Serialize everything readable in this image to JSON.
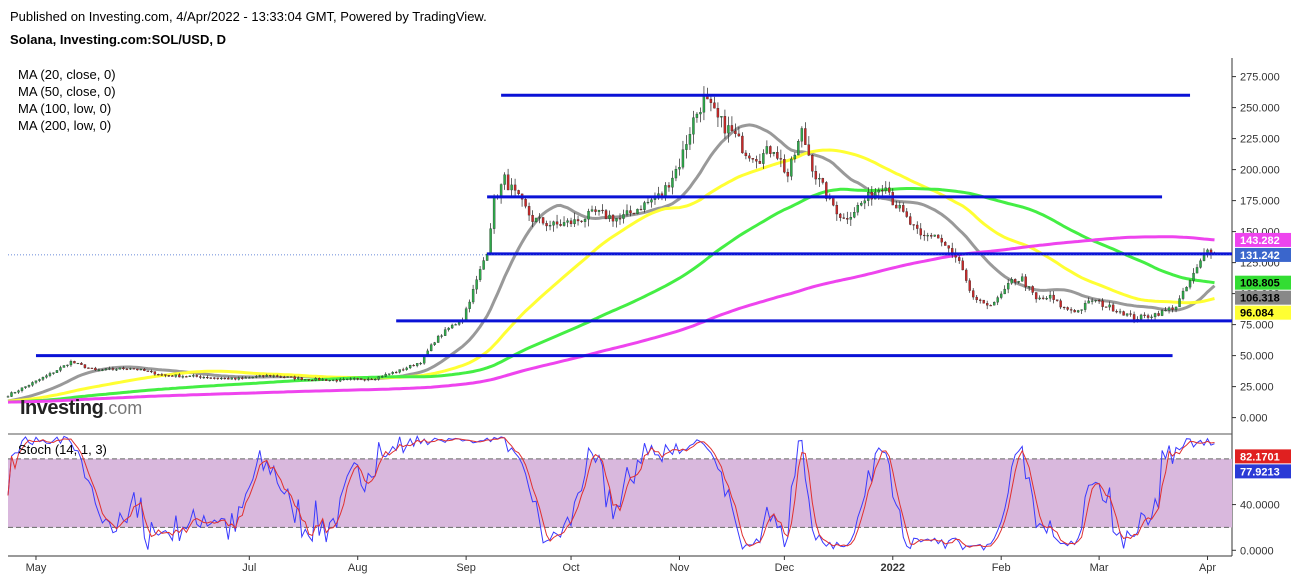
{
  "header": {
    "published": "Published on Investing.com, 4/Apr/2022 - 13:33:04 GMT, Powered by TradingView.",
    "symbol": "Solana, Investing.com:SOL/USD, D"
  },
  "logo": {
    "brand": "Investing",
    "domain": ".com"
  },
  "ma_legend": [
    "MA (20, close, 0)",
    "MA (50, close, 0)",
    "MA (100, low, 0)",
    "MA (200, low, 0)"
  ],
  "stoch_label": "Stoch (14, 1, 3)",
  "colors": {
    "up": "#2ea84a",
    "down": "#c62828",
    "level": "#0a12d6",
    "ma20": "#999999",
    "ma50": "#ffff33",
    "ma100": "#44ee44",
    "ma200": "#ee44ee",
    "stochK": "#3a3aff",
    "stochD": "#e03030",
    "stochBand": "#d9b8dd"
  },
  "chart_data": [
    {
      "type": "candlestick",
      "x_months": [
        {
          "label": "May",
          "day": 8
        },
        {
          "label": "Jul",
          "day": 69
        },
        {
          "label": "Aug",
          "day": 100
        },
        {
          "label": "Sep",
          "day": 131
        },
        {
          "label": "Oct",
          "day": 161
        },
        {
          "label": "Nov",
          "day": 192
        },
        {
          "label": "Dec",
          "day": 222
        },
        {
          "label": "2022",
          "day": 253
        },
        {
          "label": "Feb",
          "day": 284
        },
        {
          "label": "Mar",
          "day": 312
        },
        {
          "label": "Apr",
          "day": 343
        }
      ],
      "ylim": [
        -10,
        290
      ],
      "y_ticks": [
        "275.000",
        "250.000",
        "225.000",
        "200.000",
        "175.000",
        "150.000",
        "125.000",
        "100.000",
        "75.000",
        "50.000",
        "25.000",
        "0.000"
      ],
      "y_tick_values": [
        275,
        250,
        225,
        200,
        175,
        150,
        125,
        100,
        75,
        50,
        25,
        0
      ],
      "close_anchors": [
        [
          0,
          18
        ],
        [
          5,
          25
        ],
        [
          12,
          35
        ],
        [
          18,
          45
        ],
        [
          25,
          38
        ],
        [
          35,
          40
        ],
        [
          45,
          34
        ],
        [
          55,
          33
        ],
        [
          65,
          31
        ],
        [
          75,
          34
        ],
        [
          85,
          31
        ],
        [
          95,
          30
        ],
        [
          105,
          32
        ],
        [
          112,
          38
        ],
        [
          118,
          45
        ],
        [
          122,
          62
        ],
        [
          126,
          72
        ],
        [
          130,
          80
        ],
        [
          134,
          110
        ],
        [
          137,
          135
        ],
        [
          139,
          175
        ],
        [
          142,
          192
        ],
        [
          145,
          180
        ],
        [
          150,
          160
        ],
        [
          156,
          155
        ],
        [
          162,
          158
        ],
        [
          168,
          165
        ],
        [
          175,
          160
        ],
        [
          182,
          172
        ],
        [
          187,
          180
        ],
        [
          192,
          205
        ],
        [
          196,
          240
        ],
        [
          199,
          257
        ],
        [
          203,
          240
        ],
        [
          207,
          230
        ],
        [
          211,
          215
        ],
        [
          215,
          210
        ],
        [
          219,
          218
        ],
        [
          223,
          195
        ],
        [
          227,
          230
        ],
        [
          231,
          195
        ],
        [
          235,
          175
        ],
        [
          239,
          160
        ],
        [
          243,
          170
        ],
        [
          247,
          180
        ],
        [
          251,
          190
        ],
        [
          253,
          175
        ],
        [
          257,
          160
        ],
        [
          261,
          145
        ],
        [
          265,
          148
        ],
        [
          269,
          135
        ],
        [
          272,
          125
        ],
        [
          275,
          100
        ],
        [
          279,
          90
        ],
        [
          283,
          95
        ],
        [
          287,
          110
        ],
        [
          290,
          112
        ],
        [
          294,
          95
        ],
        [
          298,
          97
        ],
        [
          302,
          88
        ],
        [
          306,
          86
        ],
        [
          310,
          95
        ],
        [
          314,
          90
        ],
        [
          318,
          86
        ],
        [
          322,
          80
        ],
        [
          326,
          82
        ],
        [
          330,
          85
        ],
        [
          334,
          90
        ],
        [
          338,
          110
        ],
        [
          341,
          125
        ],
        [
          343,
          138
        ],
        [
          345,
          133
        ]
      ],
      "moving_averages": [
        {
          "name": "MA (20, close, 0)",
          "period": 20,
          "color": "#999999",
          "latest": "106.318"
        },
        {
          "name": "MA (50, close, 0)",
          "period": 50,
          "color": "#ffff33",
          "latest": "96.084"
        },
        {
          "name": "MA (100, low, 0)",
          "period": 100,
          "color": "#44ee44",
          "latest": "108.805"
        },
        {
          "name": "MA (200, low, 0)",
          "period": 200,
          "color": "#ee44ee",
          "latest": "143.282"
        }
      ],
      "last_price": "131.242",
      "horizontal_levels": [
        {
          "value": 260,
          "from_day": 141,
          "to_day": 338
        },
        {
          "value": 178,
          "from_day": 137,
          "to_day": 330
        },
        {
          "value": 132,
          "from_day": 137,
          "to_day": 350
        },
        {
          "value": 78,
          "from_day": 111,
          "to_day": 350
        },
        {
          "value": 50,
          "from_day": 8,
          "to_day": 333
        }
      ],
      "badges": [
        {
          "value": 143.282,
          "text": "143.282",
          "bg": "#ee44ee",
          "fg": "#ffffff"
        },
        {
          "value": 131.242,
          "text": "131.242",
          "bg": "#3a66cc",
          "fg": "#ffffff"
        },
        {
          "value": 108.805,
          "text": "108.805",
          "bg": "#33dd33",
          "fg": "#000000"
        },
        {
          "value": 106.318,
          "text": "106.318",
          "bg": "#888888",
          "fg": "#000000"
        },
        {
          "value": 96.084,
          "text": "96.084",
          "bg": "#ffff33",
          "fg": "#000000"
        }
      ]
    },
    {
      "type": "line",
      "name": "Stoch (14, 1, 3)",
      "ylim": [
        -5,
        100
      ],
      "y_ticks": [
        "40.0000",
        "0.0000"
      ],
      "y_tick_values": [
        40,
        0
      ],
      "band": [
        20,
        80
      ],
      "badges": [
        {
          "value": 82.1701,
          "text": "82.1701",
          "bg": "#e02020",
          "fg": "#ffffff"
        },
        {
          "value": 77.9213,
          "text": "77.9213",
          "bg": "#2a3ad6",
          "fg": "#ffffff"
        }
      ]
    }
  ]
}
